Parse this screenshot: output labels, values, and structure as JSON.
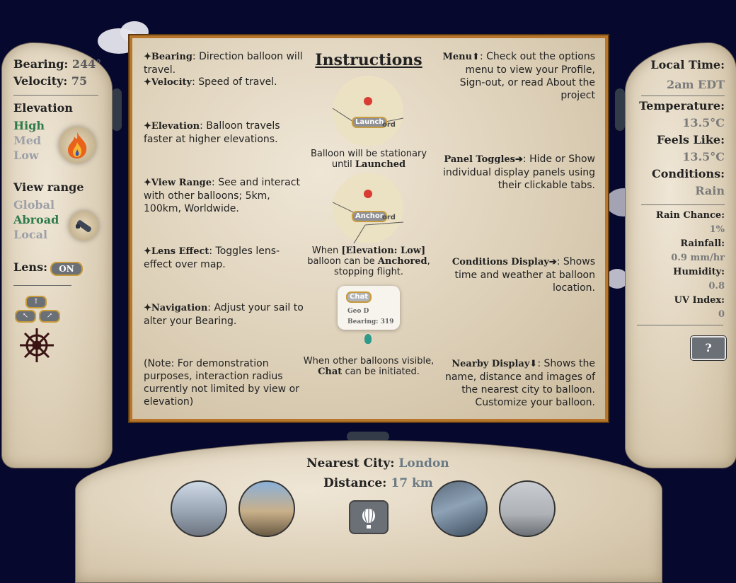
{
  "left_panel": {
    "bearing_label": "Bearing:",
    "bearing_value": "244°",
    "velocity_label": "Velocity:",
    "velocity_value": "75",
    "elevation_label": "Elevation",
    "elevation_options": [
      "High",
      "Med",
      "Low"
    ],
    "elevation_selected": "High",
    "view_range_label": "View range",
    "view_range_options": [
      "Global",
      "Abroad",
      "Local"
    ],
    "view_range_selected": "Abroad",
    "lens_label": "Lens:",
    "lens_toggle": "ON"
  },
  "right_panel": {
    "local_time_label": "Local Time:",
    "local_time_value": "2am EDT",
    "temperature_label": "Temperature:",
    "temperature_value": "13.5°C",
    "feels_like_label": "Feels Like:",
    "feels_like_value": "13.5°C",
    "conditions_label": "Conditions:",
    "conditions_value": "Rain",
    "rain_chance_label": "Rain Chance:",
    "rain_chance_value": "1%",
    "rainfall_label": "Rainfall:",
    "rainfall_value": "0.9 mm/hr",
    "humidity_label": "Humidity:",
    "humidity_value": "0.8",
    "uv_label": "UV Index:",
    "uv_value": "0",
    "help_glyph": "?"
  },
  "instructions": {
    "title": "Instructions",
    "bearing_term": "Bearing",
    "bearing_desc": ": Direction balloon will travel.",
    "velocity_term": "Velocity",
    "velocity_desc": ": Speed of travel.",
    "elevation_term": "Elevation",
    "elevation_desc": ": Balloon travels faster at higher elevations.",
    "view_range_term": "View Range",
    "view_range_desc": ": See and interact with other balloons; 5km, 100km, Worldwide.",
    "lens_term": "Lens Effect",
    "lens_desc": ": Toggles lens-effect over map.",
    "navigation_term": "Navigation",
    "navigation_desc": ": Adjust your sail to alter your Bearing.",
    "note": "(Note: For demonstration purposes, interaction radius currently not limited by view or elevation)",
    "menu_term": "Menu",
    "menu_desc": ": Check out the options menu to view your Profile, Sign-out, or read About the project",
    "panel_toggles_term": "Panel Toggles",
    "panel_toggles_desc": ": Hide or Show individual display panels using their clickable tabs.",
    "conditions_term": "Conditions Display",
    "conditions_desc": ": Shows time and weather at balloon location.",
    "nearby_term": "Nearby Display",
    "nearby_desc": ": Shows the name, distance and images of the nearest city to balloon. Customize your balloon.",
    "demo_launch_button": "Launch",
    "demo_anchor_button": "Anchor",
    "demo_map_text": "ord",
    "caption_launch_pre": "Balloon will be stationary until",
    "caption_launch_term": "Launched",
    "caption_anchor_pre": "When",
    "caption_anchor_term": "[Elevation: Low]",
    "caption_anchor_mid": "balloon can be",
    "caption_anchor_term2": "Anchored",
    "caption_anchor_post": ", stopping flight.",
    "chat_popup_button": "Chat",
    "chat_popup_name": "Geo D",
    "chat_popup_bearing": "Bearing: 319",
    "caption_chat_pre": "When other balloons visible,",
    "caption_chat_term": "Chat",
    "caption_chat_post": "can be initiated."
  },
  "bottom_panel": {
    "nearest_city_label": "Nearest City:",
    "nearest_city_value": "London",
    "distance_label": "Distance:",
    "distance_value": "17 km"
  },
  "colors": {
    "background": "#07082e",
    "active_option": "#2e7b4a",
    "frame": "#b7762c",
    "button_border": "#c79a3a"
  },
  "icons": [
    "fire-icon",
    "telescope-icon",
    "ship-wheel-icon",
    "balloon-icon",
    "help-icon"
  ]
}
